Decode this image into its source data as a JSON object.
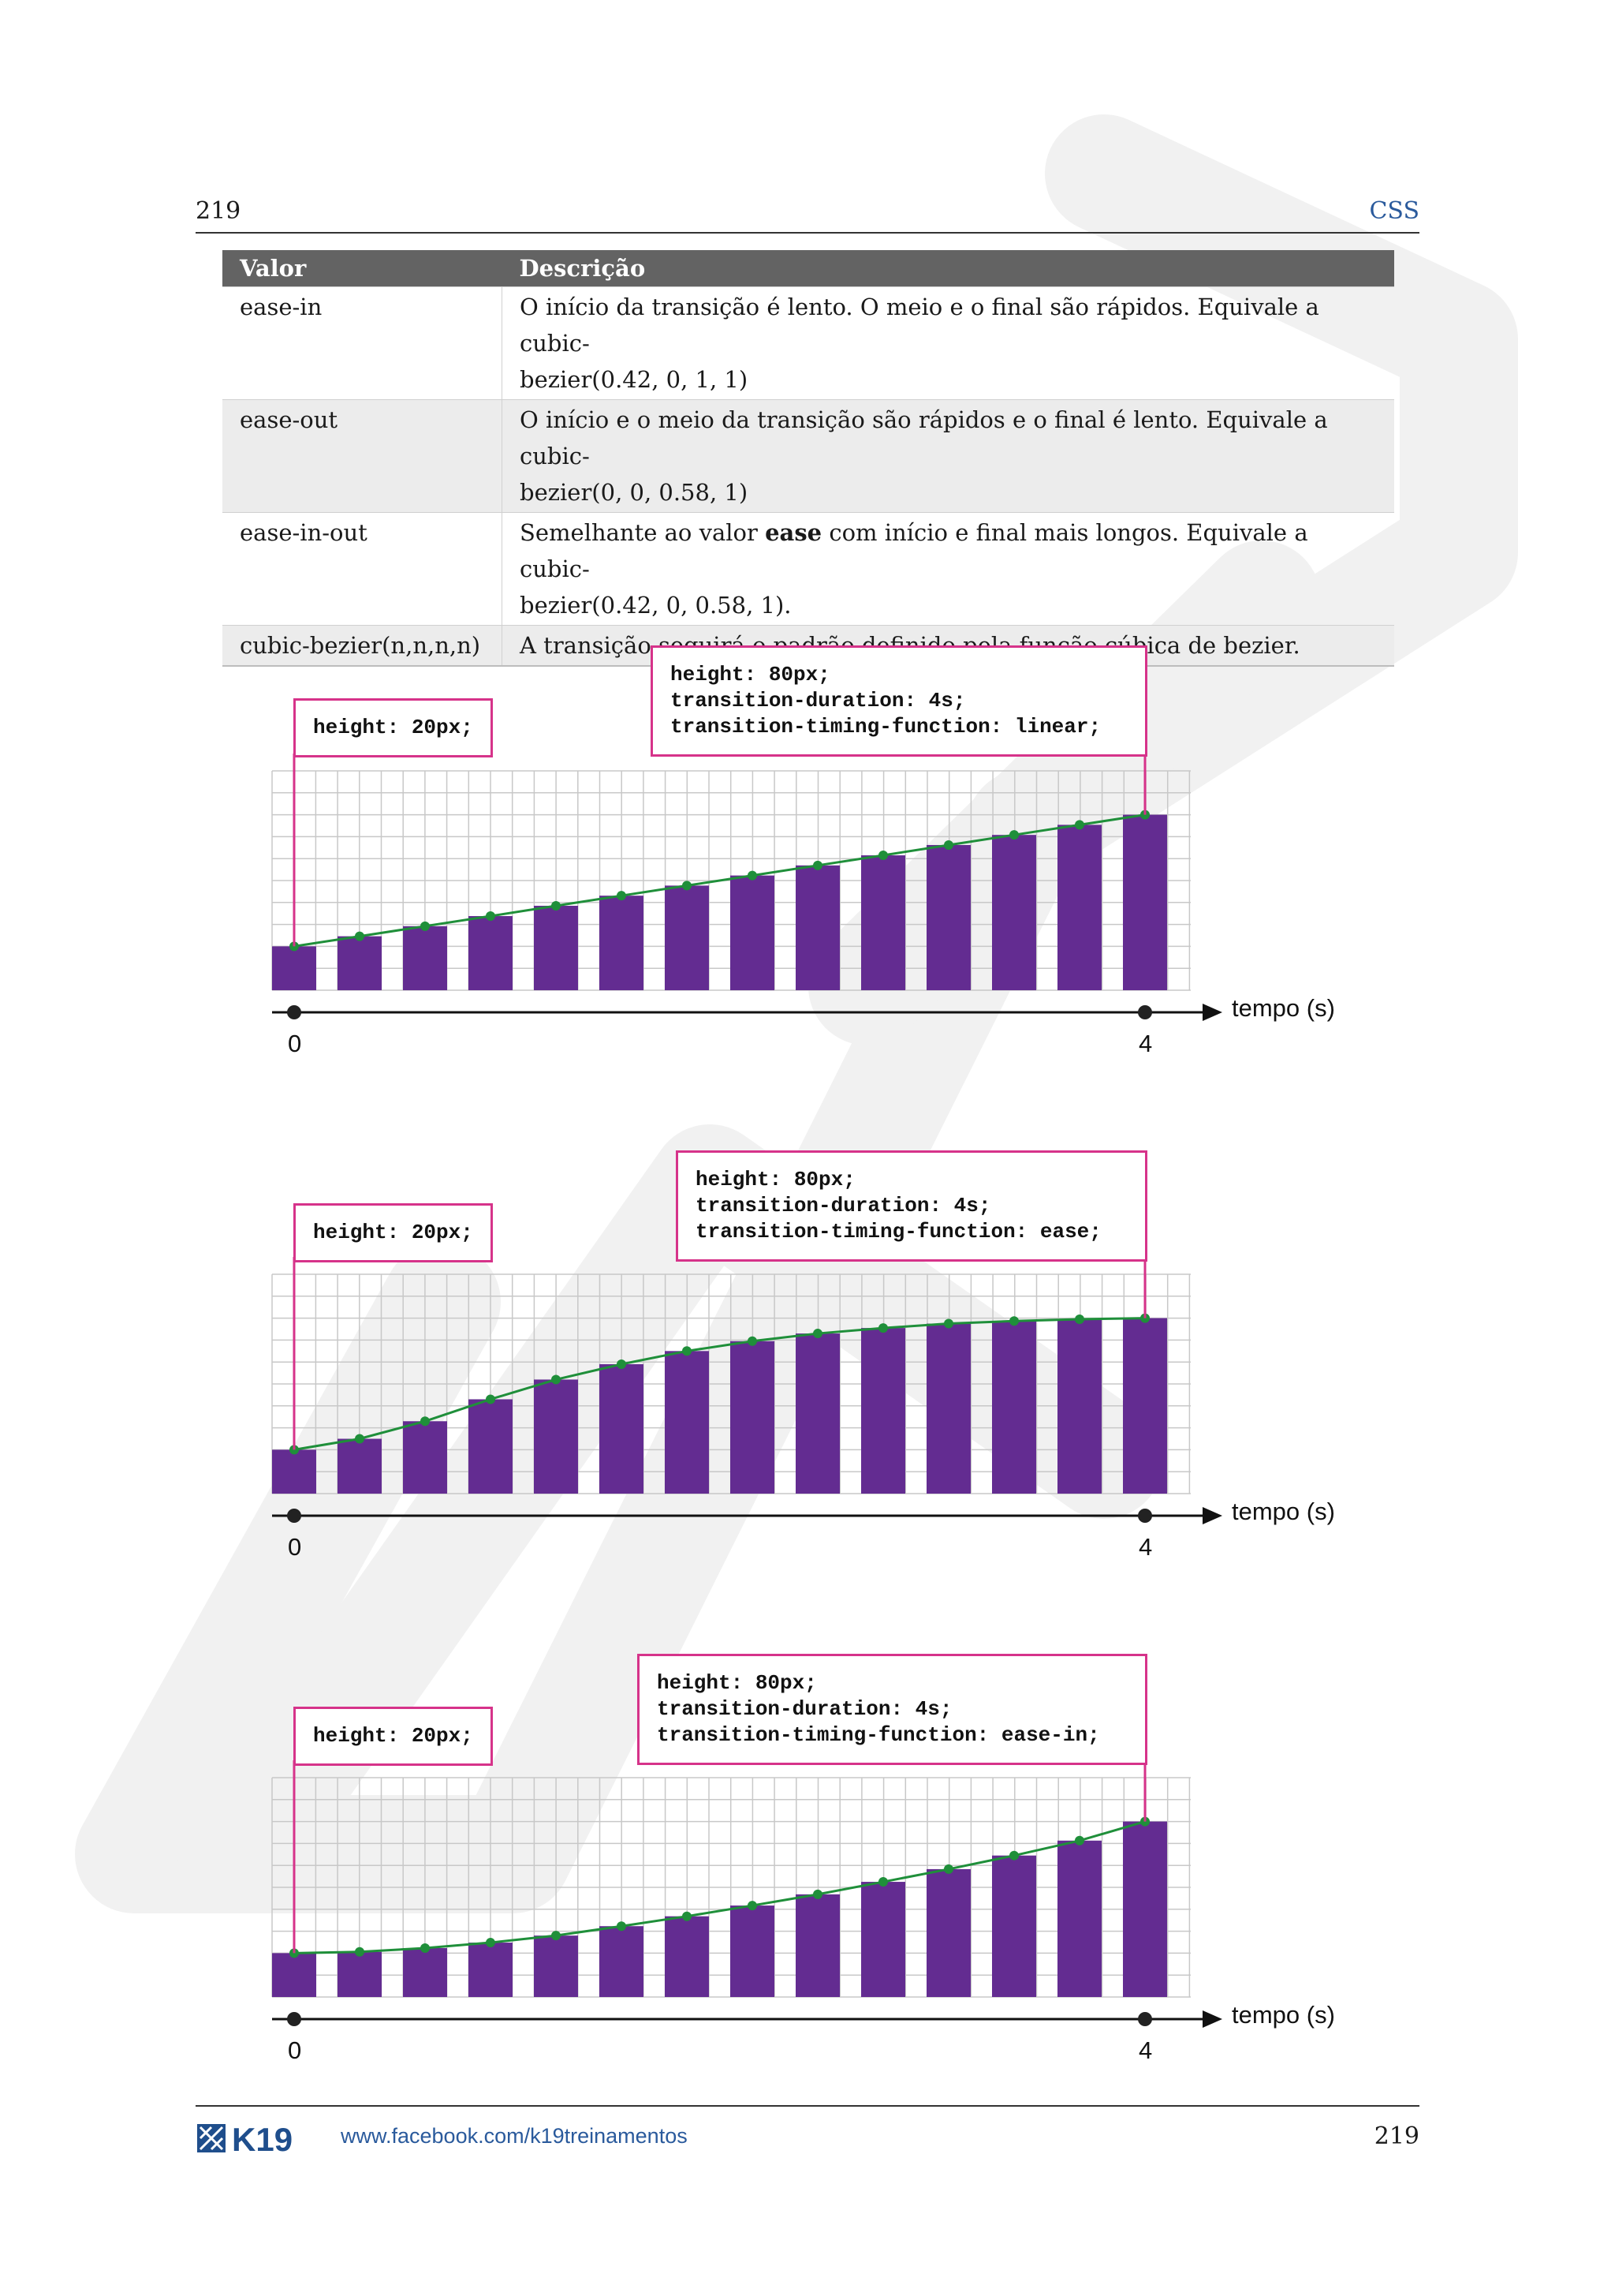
{
  "header": {
    "page_number": "219",
    "section": "CSS"
  },
  "table": {
    "columns": [
      "Valor",
      "Descrição"
    ],
    "rows": [
      {
        "value": "ease-in",
        "desc_line1": "O início da transição é lento. O meio e o final são rápidos. Equivale a cubic-",
        "desc_line2": "bezier(0.42, 0, 1, 1)"
      },
      {
        "value": "ease-out",
        "desc_line1": "O início e o meio da transição são rápidos e o final é lento. Equivale a cubic-",
        "desc_line2": "bezier(0, 0, 0.58, 1)"
      },
      {
        "value": "ease-in-out",
        "desc_pre": "Semelhante ao valor ",
        "desc_bold": "ease",
        "desc_post": " com início e final mais longos. Equivale a cubic-",
        "desc_line2": "bezier(0.42, 0, 0.58, 1)."
      },
      {
        "value": "cubic-bezier(n,n,n,n)",
        "desc_line1": "A transição seguirá o padrão definido pela função cúbica de bezier."
      }
    ]
  },
  "chart_data": [
    {
      "type": "bar",
      "start_label": "height: 20px;",
      "end_label": "height: 80px;\ntransition-duration: 4s;\ntransition-timing-function: linear;",
      "xlabel": "tempo (s)",
      "x_ticks": [
        "0",
        "4"
      ],
      "ylim": [
        0,
        100
      ],
      "values": [
        20,
        24.6,
        29.2,
        33.8,
        38.5,
        43.1,
        47.7,
        52.3,
        56.9,
        61.5,
        66.2,
        70.8,
        75.4,
        80
      ],
      "curve_color": "#1f8f3a",
      "bar_color": "#632c91"
    },
    {
      "type": "bar",
      "start_label": "height: 20px;",
      "end_label": "height: 80px;\ntransition-duration: 4s;\ntransition-timing-function: ease;",
      "xlabel": "tempo (s)",
      "x_ticks": [
        "0",
        "4"
      ],
      "ylim": [
        0,
        100
      ],
      "values": [
        20,
        25,
        33,
        43,
        52,
        59,
        65,
        69.5,
        73,
        75.5,
        77.5,
        78.7,
        79.5,
        80
      ],
      "curve_color": "#1f8f3a",
      "bar_color": "#632c91"
    },
    {
      "type": "bar",
      "start_label": "height: 20px;",
      "end_label": "height: 80px;\ntransition-duration: 4s;\ntransition-timing-function: ease-in;",
      "xlabel": "tempo (s)",
      "x_ticks": [
        "0",
        "4"
      ],
      "ylim": [
        0,
        100
      ],
      "values": [
        20,
        20.6,
        22.3,
        24.8,
        28,
        32.3,
        36.8,
        41.7,
        46.8,
        52.5,
        58.3,
        64.5,
        71.3,
        80
      ],
      "curve_color": "#1f8f3a",
      "bar_color": "#632c91"
    }
  ],
  "footer": {
    "logo_text": "K19",
    "url": "www.facebook.com/k19treinamentos",
    "page_number": "219"
  }
}
